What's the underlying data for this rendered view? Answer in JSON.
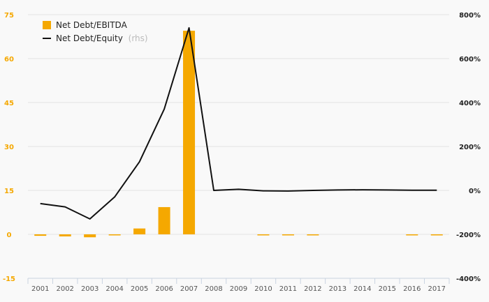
{
  "chart_data": {
    "type": "bar",
    "categories": [
      "2001",
      "2002",
      "2003",
      "2004",
      "2005",
      "2006",
      "2007",
      "2008",
      "2009",
      "2010",
      "2011",
      "2012",
      "2013",
      "2014",
      "2015",
      "2016",
      "2017"
    ],
    "series": [
      {
        "name": "Net Debt/EBITDA",
        "type": "bar",
        "axis": "left",
        "color": "#f5a800",
        "values": [
          -0.5,
          -0.7,
          -1.0,
          -0.2,
          2.0,
          9.3,
          69.5,
          0,
          0,
          -0.2,
          -0.2,
          -0.2,
          0,
          0,
          0,
          -0.2,
          -0.2
        ]
      },
      {
        "name": "Net Debt/Equity",
        "type": "line",
        "axis": "right",
        "color": "#111111",
        "values": [
          -60,
          -75,
          -130,
          -30,
          130,
          370,
          740,
          0,
          5,
          -2,
          -3,
          0,
          2,
          3,
          2,
          1,
          1
        ]
      }
    ],
    "legend_hint": "(rhs)",
    "y_left": {
      "min": -15,
      "max": 75,
      "ticks": [
        "-15",
        "0",
        "15",
        "30",
        "45",
        "60",
        "75"
      ]
    },
    "y_right": {
      "min": -400,
      "max": 800,
      "ticks": [
        "-400%",
        "-200%",
        "0%",
        "200%",
        "400%",
        "600%",
        "800%"
      ]
    },
    "grid": true,
    "legend_position": "top-left"
  }
}
